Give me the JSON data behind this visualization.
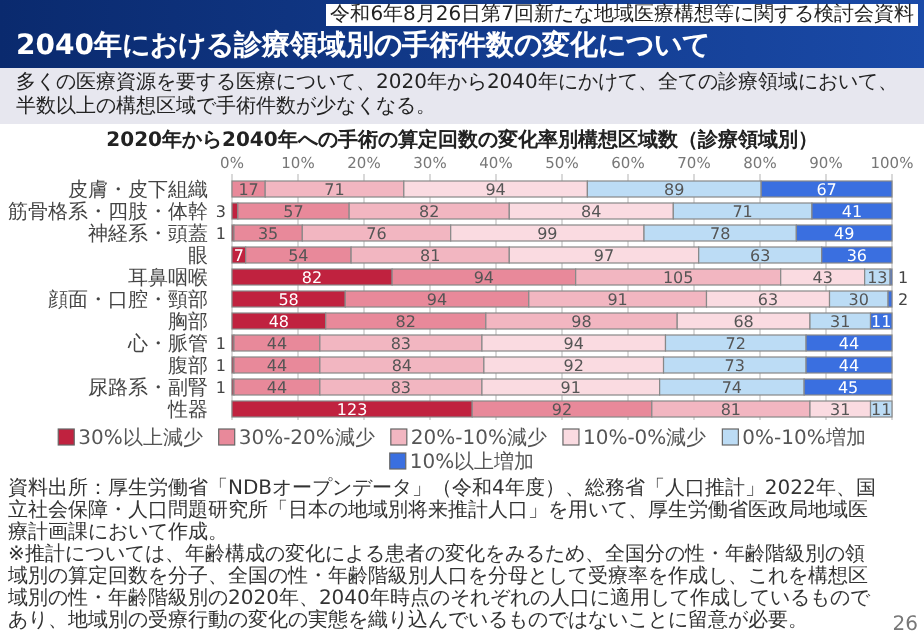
{
  "chart_data": {
    "type": "bar",
    "orientation": "horizontal",
    "stacked": true,
    "title": "2040年における診療領域別の手術件数の変化について",
    "subtitle": "2020年から2040年への手術の算定回数の変化率別構想区域数（診療領域別）",
    "categories": [
      "皮膚・皮下組織",
      "筋骨格系・四肢・体幹",
      "神経系・頭蓋",
      "眼",
      "耳鼻咽喉",
      "顔面・口腔・頸部",
      "胸部",
      "心・脈管",
      "腹部",
      "尿路系・副腎",
      "性器"
    ],
    "series": [
      {
        "name": "30%以上減少",
        "color": "#c0223f",
        "values": [
          0,
          3,
          1,
          7,
          82,
          58,
          48,
          1,
          1,
          1,
          123
        ],
        "value_labels": [
          null,
          "3",
          "1",
          "7",
          "82",
          "58",
          "48",
          "1",
          "1",
          "1",
          "123"
        ]
      },
      {
        "name": "30%-20%減少",
        "color": "#e8899a",
        "values": [
          17,
          57,
          35,
          54,
          94,
          94,
          82,
          44,
          44,
          44,
          92
        ],
        "value_labels": [
          "17",
          "57",
          "35",
          "54",
          "94",
          "94",
          "82",
          "44",
          "44",
          "44",
          "92"
        ]
      },
      {
        "name": "20%-10%減少",
        "color": "#f2b6c1",
        "values": [
          71,
          82,
          76,
          81,
          105,
          91,
          98,
          83,
          84,
          83,
          81
        ],
        "value_labels": [
          "71",
          "82",
          "76",
          "81",
          "105",
          "91",
          "98",
          "83",
          "84",
          "83",
          "81"
        ]
      },
      {
        "name": "10%-0%減少",
        "color": "#fadbe1",
        "values": [
          94,
          84,
          99,
          97,
          43,
          63,
          68,
          94,
          92,
          91,
          31
        ],
        "value_labels": [
          "94",
          "84",
          "99",
          "97",
          "43",
          "63",
          "68",
          "94",
          "92",
          "91",
          "31"
        ]
      },
      {
        "name": "0%-10%増加",
        "color": "#bcdcf5",
        "values": [
          89,
          71,
          78,
          63,
          13,
          30,
          31,
          72,
          73,
          74,
          11
        ],
        "value_labels": [
          "89",
          "71",
          "78",
          "63",
          "13",
          "30",
          "31",
          "72",
          "73",
          "74",
          "11"
        ]
      },
      {
        "name": "10%以上増加",
        "color": "#3a6fe0",
        "values": [
          67,
          41,
          49,
          36,
          1,
          2,
          11,
          44,
          44,
          45,
          0
        ],
        "value_labels": [
          "67",
          "41",
          "49",
          "36",
          "1",
          "2",
          "11",
          "44",
          "44",
          "45",
          null
        ]
      }
    ],
    "xlim": [
      0,
      338
    ],
    "x2lim": [
      0,
      100
    ],
    "x2ticks": [
      {
        "value": 0,
        "label": "0%"
      },
      {
        "value": 10,
        "label": "10%"
      },
      {
        "value": 20,
        "label": "20%"
      },
      {
        "value": 30,
        "label": "30%"
      },
      {
        "value": 40,
        "label": "40%"
      },
      {
        "value": 50,
        "label": "50%"
      },
      {
        "value": 60,
        "label": "60%"
      },
      {
        "value": 70,
        "label": "70%"
      },
      {
        "value": 80,
        "label": "80%"
      },
      {
        "value": 90,
        "label": "90%"
      },
      {
        "value": 100,
        "label": "100%"
      }
    ],
    "grid": "x",
    "legend": "bottom",
    "annotations": [
      "令和6年8月26日第7回新たな地域医療構想等に関する検討会資料",
      "多くの医療資源を要する医療について、2020年から2040年にかけて、全ての診療領域において、半数以上の構想区域で手術件数が少なくなる。",
      "資料出所：厚生労働省「NDBオープンデータ」（令和4年度）、総務省「人口推計」2022年、国立社会保障・人口問題研究所「日本の地域別将来推計人口」を用いて、厚生労働省医政局地域医療計画課において作成。",
      "※推計については、年齢構成の変化による患者の変化をみるため、全国分の性・年齢階級別の領域別の算定回数を分子、全国の性・年齢階級別人口を分母として受療率を作成し、これを構想区域別の性・年齢階級別の2020年、2040年時点のそれぞれの人口に適用して作成しているものであり、地域別の受療行動の変化の実態を織り込んでいるものではないことに留意が必要。",
      "26"
    ]
  }
}
